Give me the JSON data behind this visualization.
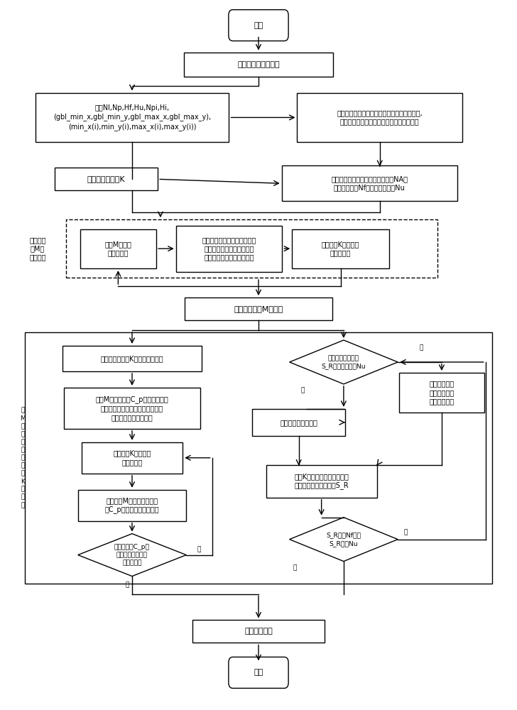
{
  "bg": "#ffffff",
  "ec": "#000000",
  "fc": "#ffffff",
  "tc": "#000000",
  "texts": {
    "start": "开始",
    "end": "结束",
    "read": "读取矢量等高线数据",
    "stat": "统计Nl,Np,Hf,Hu,Npi,Hi,\n(gbl_min_x,gbl_min_y,gbl_max_x,gbl_max_y),\n(min_x(i),min_y(i),max_x(i),max_y(i))",
    "calc_center": "计算每条等高线数据最小外包矩形中心点坐标,\n并用具有高程信息的中心点要素表示线要素",
    "calc_nodes": "并行计算节点数K",
    "calc_threshold": "计算理想负载均衡状态下负载阈值NA、\n负载阈值下限Nf、负载阈值上限Nu",
    "label_m": "把点聚类\n为M个\n初始类簇",
    "select_m": "选取M个初始\n聚类中心点",
    "calc_dist": "计算所有点要素到聚类中心点\n的距离，并把点归入到距离\n聚类中心距离最短的聚类中",
    "recalc_k": "重新计算K个类簇的\n中心点坐标",
    "quad_rep": "用四元组表示M个类簇",
    "label_big": "把\nM\n个\n四\n元\n组\n聚\n类\n为\nK\n个\n类\n簇",
    "select_k": "从四元组中选择K个初始聚类中心",
    "calc_cp": "计算M个四元组中C_p到聚类中心点\n的距离，把四元组归入到距离聚类\n中心距离最短的聚类中",
    "recalc_k2": "重新计算K个类簇的\n中心点坐标",
    "recalc_dist": "重新计算M个四元组中点要\n素C_p到聚类中心点的距离",
    "diamond_min": "四元组中点C_p到\n所属类簇中心点距\n离是否最小",
    "diamond_nu": "四元组所属类簇中\nS_R是否大于上限Nu",
    "no_change": "四元组所属类簇不变",
    "reassign": "四元组归入距\n离最近的中心\n点所在类簇中",
    "stat_sr": "统计K个类簇中点要素对应的\n等高线包含的点数之和S_R",
    "diamond_nf": "S_R大于Nf并且\nS_R小于Nu",
    "save": "保存划分数据",
    "yes": "是",
    "no": "否"
  }
}
